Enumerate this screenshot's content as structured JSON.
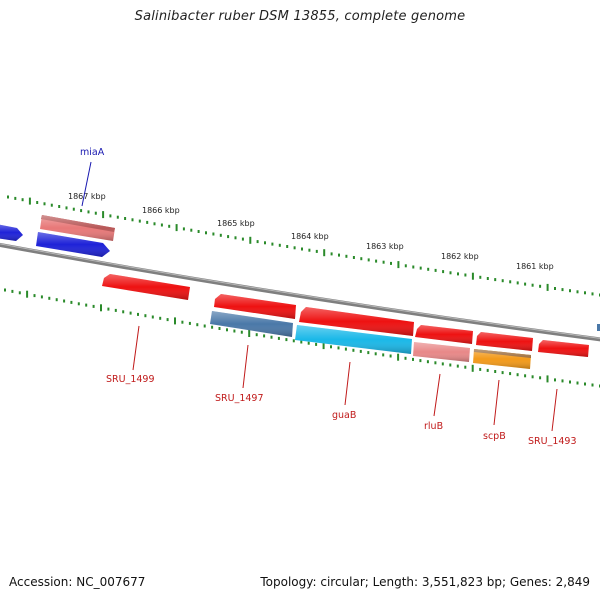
{
  "title": "Salinibacter ruber DSM 13855, complete genome",
  "footer": {
    "accession": "Accession: NC_007677",
    "stats": "Topology: circular; Length: 3,551,823 bp; Genes: 2,849"
  },
  "ticks": [
    {
      "label": "1867 kbp"
    },
    {
      "label": "1866 kbp"
    },
    {
      "label": "1865 kbp"
    },
    {
      "label": "1864 kbp"
    },
    {
      "label": "1863 kbp"
    },
    {
      "label": "1862 kbp"
    },
    {
      "label": "1861 kbp"
    }
  ],
  "genes": [
    {
      "name": "miaA",
      "color": "#1e22d8",
      "strand": "forward"
    },
    {
      "name": "",
      "color": "#e87878",
      "strand": "forward"
    },
    {
      "name": "",
      "color": "#1e22d8",
      "strand": "forward"
    },
    {
      "name": "SRU_1499",
      "color": "#ee1111",
      "strand": "reverse"
    },
    {
      "name": "",
      "color": "#ee1111",
      "strand": "reverse"
    },
    {
      "name": "SRU_1497",
      "color": "#4a78a8",
      "strand": "reverse"
    },
    {
      "name": "",
      "color": "#ee1111",
      "strand": "reverse"
    },
    {
      "name": "guaB",
      "color": "#1ab8e8",
      "strand": "reverse"
    },
    {
      "name": "",
      "color": "#ee1111",
      "strand": "reverse"
    },
    {
      "name": "rluB",
      "color": "#e88888",
      "strand": "reverse"
    },
    {
      "name": "",
      "color": "#ee1111",
      "strand": "reverse"
    },
    {
      "name": "scpB",
      "color": "#f39a1a",
      "strand": "reverse"
    },
    {
      "name": "SRU_1493",
      "color": "#ee1111",
      "strand": "reverse"
    }
  ],
  "colors": {
    "backbone": "#808080",
    "tick": "#2a8a2a",
    "forward_label": "#1a1ab0",
    "reverse_label": "#c01a1a"
  }
}
